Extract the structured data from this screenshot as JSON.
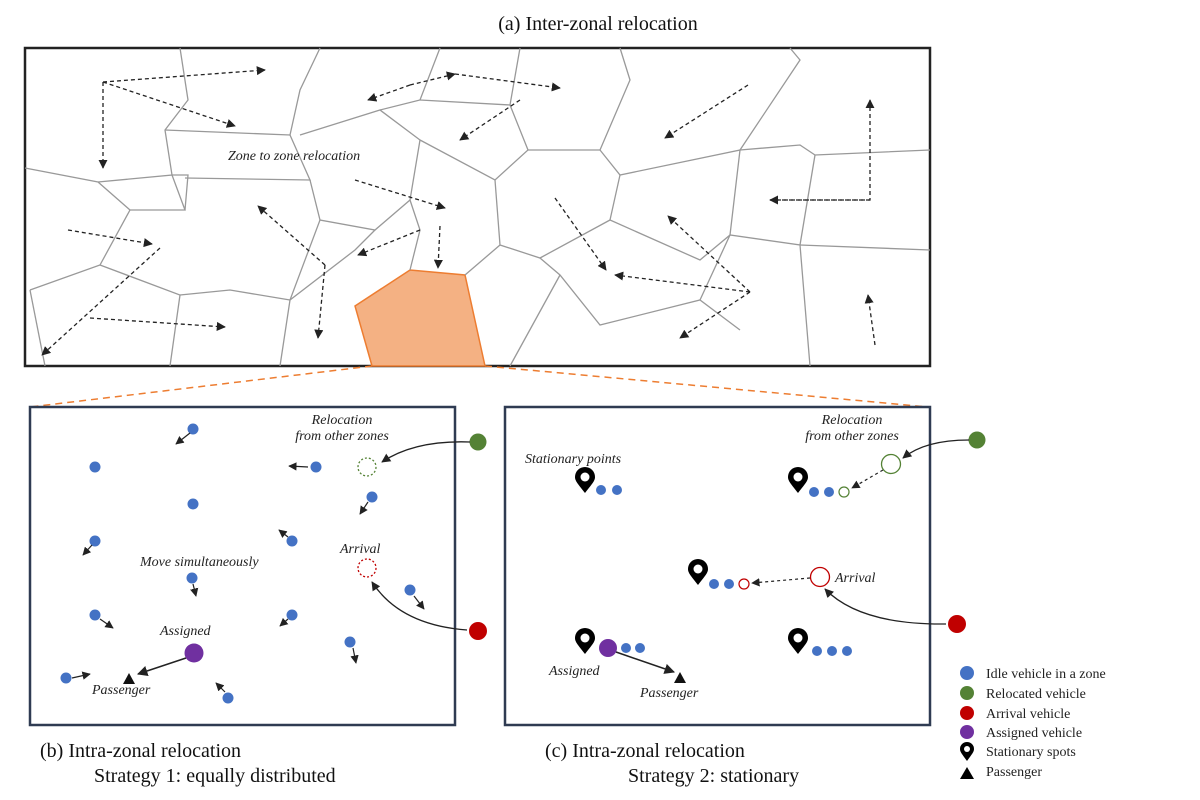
{
  "captions": {
    "a": "(a) Inter-zonal relocation",
    "b_line1": "(b) Intra-zonal relocation",
    "b_line2": "Strategy 1: equally distributed",
    "c_line1": "(c) Intra-zonal relocation",
    "c_line2": "Strategy 2: stationary"
  },
  "labels": {
    "zone_to_zone": "Zone to zone relocation",
    "b_relocation_1": "Relocation",
    "b_relocation_2": "from other zones",
    "b_move": "Move simultaneously",
    "b_arrival": "Arrival",
    "b_assigned": "Assigned",
    "b_passenger": "Passenger",
    "c_stationary_points": "Stationary points",
    "c_relocation_1": "Relocation",
    "c_relocation_2": "from other zones",
    "c_arrival": "Arrival",
    "c_assigned": "Assigned",
    "c_passenger": "Passenger"
  },
  "legend": [
    {
      "label": "Idle vehicle in a zone",
      "icon": "circle",
      "color": "#4472c4"
    },
    {
      "label": "Relocated vehicle",
      "icon": "circle",
      "color": "#548235"
    },
    {
      "label": "Arrival vehicle",
      "icon": "circle",
      "color": "#c00000"
    },
    {
      "label": "Assigned vehicle",
      "icon": "circle",
      "color": "#7030a0"
    },
    {
      "label": "Stationary spots",
      "icon": "map-pin",
      "color": "#000000"
    },
    {
      "label": "Passenger",
      "icon": "triangle",
      "color": "#000000"
    }
  ],
  "colors": {
    "idle": "#4472c4",
    "relocated": "#548235",
    "arrival": "#c00000",
    "assigned": "#7030a0",
    "highlight_zone": "#f4b183",
    "highlight_edge": "#ed7d31"
  }
}
